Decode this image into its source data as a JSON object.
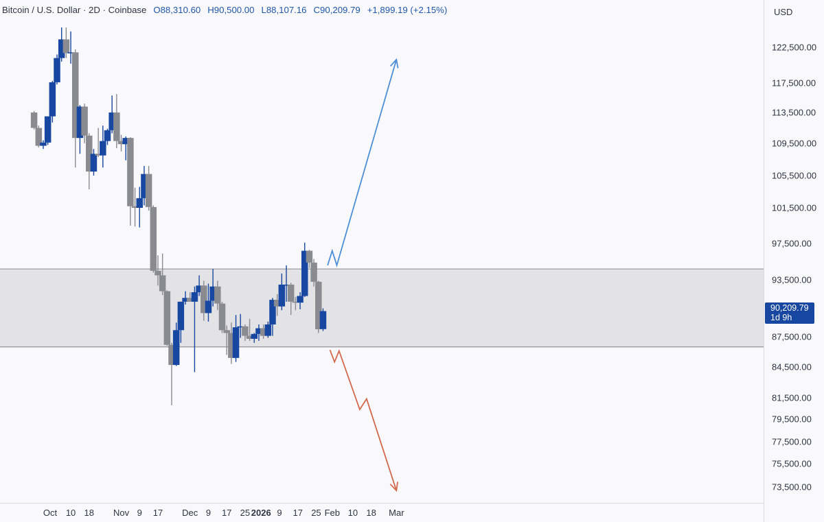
{
  "header": {
    "symbol": "Bitcoin / U.S. Dollar · 2D · Coinbase",
    "open": "O88,310.60",
    "high": "H90,500.00",
    "low": "L88,107.16",
    "close": "C90,209.79",
    "change": "+1,899.19 (+2.15%)"
  },
  "price_axis": {
    "currency": "USD",
    "current_price": "90,209.79",
    "countdown": "1d 9h"
  },
  "colors": {
    "up": "#1747a0",
    "down": "#8a8b90",
    "zone_fill": "#e3e3e6",
    "zone_border": "#9b9ca1",
    "bull_arrow": "#4d8fd6",
    "bear_arrow": "#d2684c",
    "background": "#f9f9fb"
  },
  "chart_data": {
    "type": "candlestick",
    "title": "Bitcoin / U.S. Dollar · 2D · Coinbase",
    "y_ticks": [
      {
        "label": "122,500.00",
        "value": 122500
      },
      {
        "label": "117,500.00",
        "value": 117500
      },
      {
        "label": "113,500.00",
        "value": 113500
      },
      {
        "label": "109,500.00",
        "value": 109500
      },
      {
        "label": "105,500.00",
        "value": 105500
      },
      {
        "label": "101,500.00",
        "value": 101500
      },
      {
        "label": "97,500.00",
        "value": 97500
      },
      {
        "label": "93,500.00",
        "value": 93500
      },
      {
        "label": "87,500.00",
        "value": 87500
      },
      {
        "label": "84,500.00",
        "value": 84500
      },
      {
        "label": "81,500.00",
        "value": 81500
      },
      {
        "label": "79,500.00",
        "value": 79500
      },
      {
        "label": "77,500.00",
        "value": 77500
      },
      {
        "label": "75,500.00",
        "value": 75500
      },
      {
        "label": "73,500.00",
        "value": 73500
      }
    ],
    "x_ticks": [
      {
        "label": "Oct",
        "date": "2025-10-01",
        "bold": false
      },
      {
        "label": "10",
        "date": "2025-10-10",
        "bold": false
      },
      {
        "label": "18",
        "date": "2025-10-18",
        "bold": false
      },
      {
        "label": "Nov",
        "date": "2025-11-01",
        "bold": false
      },
      {
        "label": "9",
        "date": "2025-11-09",
        "bold": false
      },
      {
        "label": "17",
        "date": "2025-11-17",
        "bold": false
      },
      {
        "label": "Dec",
        "date": "2025-12-01",
        "bold": false
      },
      {
        "label": "9",
        "date": "2025-12-09",
        "bold": false
      },
      {
        "label": "17",
        "date": "2025-12-17",
        "bold": false
      },
      {
        "label": "25",
        "date": "2025-12-25",
        "bold": false
      },
      {
        "label": "2026",
        "date": "2026-01-01",
        "bold": true
      },
      {
        "label": "9",
        "date": "2026-01-09",
        "bold": false
      },
      {
        "label": "17",
        "date": "2026-01-17",
        "bold": false
      },
      {
        "label": "25",
        "date": "2026-01-25",
        "bold": false
      },
      {
        "label": "Feb",
        "date": "2026-02-01",
        "bold": false
      },
      {
        "label": "10",
        "date": "2026-02-10",
        "bold": false
      },
      {
        "label": "18",
        "date": "2026-02-18",
        "bold": false
      },
      {
        "label": "Mar",
        "date": "2026-03-01",
        "bold": false
      }
    ],
    "candles": [
      {
        "date": "2025-09-24",
        "o": 113500,
        "h": 113700,
        "l": 111300,
        "c": 111500
      },
      {
        "date": "2025-09-26",
        "o": 111500,
        "h": 111800,
        "l": 109000,
        "c": 109200
      },
      {
        "date": "2025-09-28",
        "o": 109200,
        "h": 109900,
        "l": 108800,
        "c": 109600
      },
      {
        "date": "2025-09-30",
        "o": 109600,
        "h": 113000,
        "l": 109300,
        "c": 113000
      },
      {
        "date": "2025-10-02",
        "o": 113000,
        "h": 117800,
        "l": 112200,
        "c": 117600
      },
      {
        "date": "2025-10-04",
        "o": 117600,
        "h": 121500,
        "l": 117300,
        "c": 121000
      },
      {
        "date": "2025-10-06",
        "o": 121000,
        "h": 125000,
        "l": 120500,
        "c": 123500
      },
      {
        "date": "2025-10-08",
        "o": 123500,
        "h": 125800,
        "l": 121000,
        "c": 121700
      },
      {
        "date": "2025-10-10",
        "o": 121700,
        "h": 124500,
        "l": 120200,
        "c": 121800
      },
      {
        "date": "2025-10-12",
        "o": 121800,
        "h": 122200,
        "l": 106500,
        "c": 110200
      },
      {
        "date": "2025-10-14",
        "o": 110200,
        "h": 114500,
        "l": 108200,
        "c": 114300
      },
      {
        "date": "2025-10-16",
        "o": 114300,
        "h": 114700,
        "l": 109500,
        "c": 110500
      },
      {
        "date": "2025-10-18",
        "o": 110500,
        "h": 110800,
        "l": 103800,
        "c": 106000
      },
      {
        "date": "2025-10-20",
        "o": 106000,
        "h": 108800,
        "l": 105500,
        "c": 108200
      },
      {
        "date": "2025-10-22",
        "o": 108200,
        "h": 111500,
        "l": 107800,
        "c": 108000
      },
      {
        "date": "2025-10-24",
        "o": 108000,
        "h": 111800,
        "l": 106500,
        "c": 109800
      },
      {
        "date": "2025-10-26",
        "o": 109800,
        "h": 111400,
        "l": 109300,
        "c": 111200
      },
      {
        "date": "2025-10-28",
        "o": 111200,
        "h": 115800,
        "l": 110800,
        "c": 113500
      },
      {
        "date": "2025-10-30",
        "o": 113500,
        "h": 116000,
        "l": 108900,
        "c": 109800
      },
      {
        "date": "2025-11-01",
        "o": 109800,
        "h": 110600,
        "l": 108500,
        "c": 109400
      },
      {
        "date": "2025-11-03",
        "o": 109400,
        "h": 110400,
        "l": 107400,
        "c": 110200
      },
      {
        "date": "2025-11-05",
        "o": 110200,
        "h": 110300,
        "l": 99500,
        "c": 101700
      },
      {
        "date": "2025-11-07",
        "o": 101700,
        "h": 104000,
        "l": 99400,
        "c": 101500
      },
      {
        "date": "2025-11-09",
        "o": 101500,
        "h": 104100,
        "l": 99300,
        "c": 102700
      },
      {
        "date": "2025-11-11",
        "o": 102700,
        "h": 106700,
        "l": 101800,
        "c": 105700
      },
      {
        "date": "2025-11-13",
        "o": 105700,
        "h": 106700,
        "l": 101200,
        "c": 101600
      },
      {
        "date": "2025-11-15",
        "o": 101600,
        "h": 101800,
        "l": 94300,
        "c": 94500
      },
      {
        "date": "2025-11-17",
        "o": 94500,
        "h": 96200,
        "l": 92900,
        "c": 94000
      },
      {
        "date": "2025-11-19",
        "o": 94000,
        "h": 96400,
        "l": 91900,
        "c": 92300
      },
      {
        "date": "2025-11-21",
        "o": 92300,
        "h": 92400,
        "l": 86600,
        "c": 86700
      },
      {
        "date": "2025-11-23",
        "o": 86700,
        "h": 86900,
        "l": 80800,
        "c": 84700
      },
      {
        "date": "2025-11-25",
        "o": 84700,
        "h": 89000,
        "l": 84600,
        "c": 88200
      },
      {
        "date": "2025-11-27",
        "o": 88200,
        "h": 91200,
        "l": 86900,
        "c": 91200
      },
      {
        "date": "2025-11-29",
        "o": 91200,
        "h": 92300,
        "l": 90900,
        "c": 91600
      },
      {
        "date": "2025-12-01",
        "o": 91600,
        "h": 92200,
        "l": 91200,
        "c": 91200
      },
      {
        "date": "2025-12-03",
        "o": 91200,
        "h": 92800,
        "l": 84000,
        "c": 92200
      },
      {
        "date": "2025-12-05",
        "o": 92200,
        "h": 94000,
        "l": 91800,
        "c": 92900
      },
      {
        "date": "2025-12-07",
        "o": 92900,
        "h": 93400,
        "l": 89200,
        "c": 90000
      },
      {
        "date": "2025-12-09",
        "o": 90000,
        "h": 93100,
        "l": 89100,
        "c": 91300
      },
      {
        "date": "2025-12-11",
        "o": 91300,
        "h": 94700,
        "l": 90700,
        "c": 92800
      },
      {
        "date": "2025-12-13",
        "o": 92800,
        "h": 93400,
        "l": 90300,
        "c": 91000
      },
      {
        "date": "2025-12-15",
        "o": 91000,
        "h": 91200,
        "l": 87900,
        "c": 88200
      },
      {
        "date": "2025-12-17",
        "o": 88200,
        "h": 88700,
        "l": 85700,
        "c": 87900
      },
      {
        "date": "2025-12-19",
        "o": 87900,
        "h": 89000,
        "l": 84800,
        "c": 85400
      },
      {
        "date": "2025-12-21",
        "o": 85400,
        "h": 89800,
        "l": 85000,
        "c": 88500
      },
      {
        "date": "2025-12-23",
        "o": 88500,
        "h": 89900,
        "l": 87400,
        "c": 88600
      },
      {
        "date": "2025-12-25",
        "o": 88600,
        "h": 88800,
        "l": 87100,
        "c": 87600
      },
      {
        "date": "2025-12-27",
        "o": 87600,
        "h": 89400,
        "l": 87100,
        "c": 87300
      },
      {
        "date": "2025-12-29",
        "o": 87300,
        "h": 87900,
        "l": 86900,
        "c": 87800
      },
      {
        "date": "2025-12-31",
        "o": 87800,
        "h": 88800,
        "l": 87100,
        "c": 88400
      },
      {
        "date": "2026-01-02",
        "o": 88400,
        "h": 88800,
        "l": 87300,
        "c": 87600
      },
      {
        "date": "2026-01-04",
        "o": 87600,
        "h": 89100,
        "l": 87400,
        "c": 88800
      },
      {
        "date": "2026-01-06",
        "o": 88800,
        "h": 91600,
        "l": 87600,
        "c": 91400
      },
      {
        "date": "2026-01-08",
        "o": 91400,
        "h": 92000,
        "l": 89700,
        "c": 90700
      },
      {
        "date": "2026-01-10",
        "o": 90700,
        "h": 94200,
        "l": 90300,
        "c": 93000
      },
      {
        "date": "2026-01-12",
        "o": 93000,
        "h": 95100,
        "l": 91200,
        "c": 93000
      },
      {
        "date": "2026-01-14",
        "o": 93000,
        "h": 93200,
        "l": 89800,
        "c": 91200
      },
      {
        "date": "2026-01-16",
        "o": 91200,
        "h": 91700,
        "l": 90300,
        "c": 91100
      },
      {
        "date": "2026-01-18",
        "o": 91100,
        "h": 92200,
        "l": 90400,
        "c": 91800
      },
      {
        "date": "2026-01-20",
        "o": 91800,
        "h": 97600,
        "l": 91700,
        "c": 96700
      },
      {
        "date": "2026-01-22",
        "o": 96700,
        "h": 96800,
        "l": 94800,
        "c": 95400
      },
      {
        "date": "2026-01-24",
        "o": 95400,
        "h": 95800,
        "l": 92800,
        "c": 93300
      },
      {
        "date": "2026-01-26",
        "o": 93300,
        "h": 93400,
        "l": 87900,
        "c": 88300
      },
      {
        "date": "2026-01-28",
        "o": 88310.6,
        "h": 90500,
        "l": 88107.16,
        "c": 90209.79
      }
    ],
    "zones": [
      {
        "name": "",
        "from": 86500,
        "to": 94700
      }
    ],
    "projections": [
      {
        "direction": "up",
        "points": [
          {
            "date": "2026-01-30",
            "value": 95100
          },
          {
            "date": "2026-02-01",
            "value": 96700
          },
          {
            "date": "2026-02-03",
            "value": 95100
          },
          {
            "date": "2026-03-01",
            "value": 120800
          }
        ]
      },
      {
        "direction": "down",
        "points": [
          {
            "date": "2026-01-31",
            "value": 86200
          },
          {
            "date": "2026-02-02",
            "value": 85000
          },
          {
            "date": "2026-02-04",
            "value": 86100
          },
          {
            "date": "2026-02-13",
            "value": 80400
          },
          {
            "date": "2026-02-16",
            "value": 81400
          },
          {
            "date": "2026-03-01",
            "value": 73200
          }
        ]
      }
    ],
    "last_price": 90209.79,
    "grid": false,
    "legend": "none"
  }
}
